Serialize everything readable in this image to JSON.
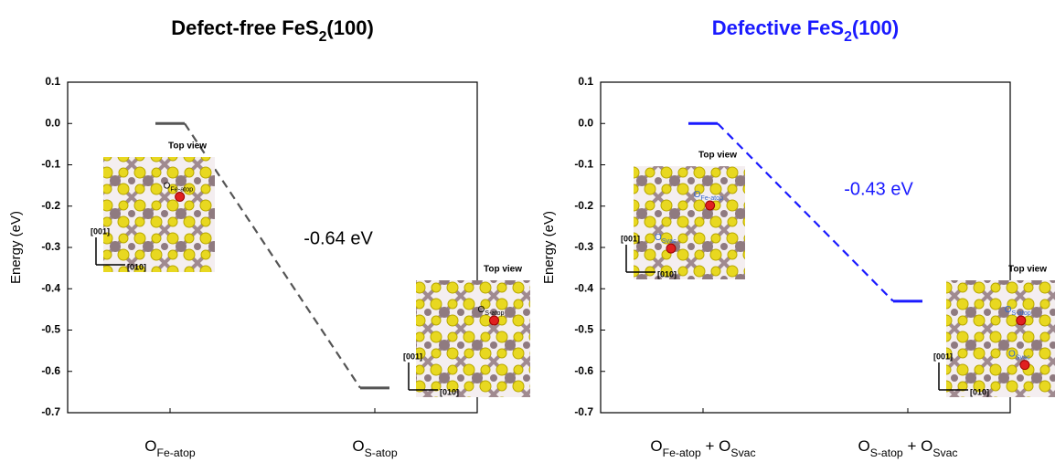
{
  "chart_data": [
    {
      "type": "energy-level",
      "title": [
        "Defect-free FeS",
        "2",
        "(100)"
      ],
      "title_color": "#000000",
      "y_label": "Energy (eV)",
      "categories": [
        [
          "O",
          "Fe-atop"
        ],
        [
          "O",
          "S-atop"
        ]
      ],
      "values": [
        0,
        -0.64
      ],
      "color": "#555555",
      "annotation": "-0.64 eV",
      "annotation_color": "#000000",
      "ylim": [
        -0.7,
        0.1
      ],
      "yticks": [
        0.1,
        {
          "value": 0,
          "label": "0.0"
        },
        -0.1,
        -0.2,
        -0.3,
        -0.4,
        -0.5,
        -0.6,
        -0.7
      ],
      "insets": [
        {
          "heading": "Top view",
          "axis_a": "[001]",
          "axis_b": "[010]",
          "labels": [
            [
              "O",
              "Fe-atop"
            ]
          ]
        },
        {
          "heading": "Top view",
          "axis_a": "[001]",
          "axis_b": "[010]",
          "labels": [
            [
              "O",
              "S-atop"
            ]
          ]
        }
      ],
      "inset_label_color": "#000000"
    },
    {
      "type": "energy-level",
      "title": [
        "Defective FeS",
        "2",
        "(100)"
      ],
      "title_color": "#1a1aff",
      "y_label": "Energy (eV)",
      "categories": [
        [
          "O",
          "Fe-atop",
          " + O",
          "Svac"
        ],
        [
          "O",
          "S-atop",
          " + O",
          "Svac"
        ]
      ],
      "values": [
        0,
        -0.43
      ],
      "color": "#1a1aff",
      "annotation": "-0.43 eV",
      "annotation_color": "#1a1aff",
      "ylim": [
        -0.7,
        0.1
      ],
      "yticks": [
        0.1,
        {
          "value": 0,
          "label": "0.0"
        },
        -0.1,
        -0.2,
        -0.3,
        -0.4,
        -0.5,
        -0.6,
        -0.7
      ],
      "insets": [
        {
          "heading": "Top view",
          "axis_a": "[001]",
          "axis_b": "[010]",
          "labels": [
            [
              "O",
              "Fe-atop"
            ],
            [
              "O",
              "Svac"
            ]
          ]
        },
        {
          "heading": "Top view",
          "axis_a": "[001]",
          "axis_b": "[010]",
          "labels": [
            [
              "O",
              "S-atop"
            ],
            [
              "O",
              "Svac"
            ]
          ]
        }
      ],
      "inset_label_color": "#3366cc"
    }
  ]
}
